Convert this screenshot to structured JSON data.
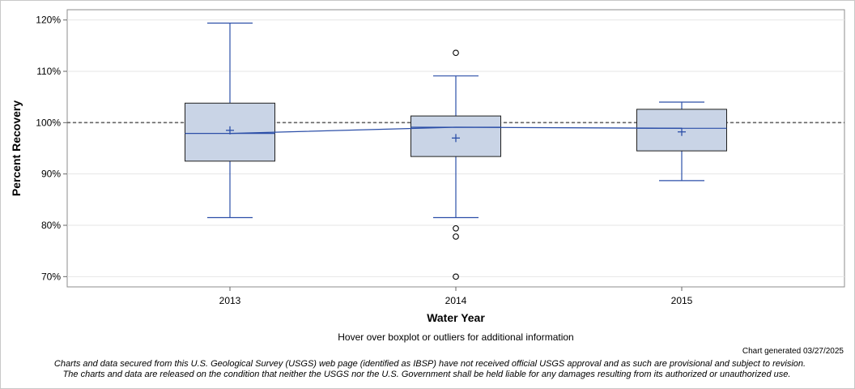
{
  "chart_data": {
    "type": "box",
    "xlabel": "Water Year",
    "ylabel": "Percent Recovery",
    "ylim": [
      68,
      122
    ],
    "yticks": [
      70,
      80,
      90,
      100,
      110,
      120
    ],
    "ytick_labels": [
      "70%",
      "80%",
      "90%",
      "100%",
      "110%",
      "120%"
    ],
    "reference_line": 100,
    "categories": [
      "2013",
      "2014",
      "2015"
    ],
    "boxes": [
      {
        "category": "2013",
        "whisker_low": 81.5,
        "q1": 92.5,
        "median": 97.9,
        "q3": 103.8,
        "whisker_high": 119.4,
        "mean": 98.5,
        "outliers": []
      },
      {
        "category": "2014",
        "whisker_low": 81.5,
        "q1": 93.4,
        "median": 99.1,
        "q3": 101.3,
        "whisker_high": 109.1,
        "mean": 97.0,
        "outliers": [
          113.6,
          79.4,
          77.8,
          70.0
        ]
      },
      {
        "category": "2015",
        "whisker_low": 88.7,
        "q1": 94.5,
        "median": 98.9,
        "q3": 102.6,
        "whisker_high": 104.0,
        "mean": 98.2,
        "outliers": []
      }
    ],
    "median_line": [
      97.9,
      99.1,
      98.9
    ],
    "grid": true,
    "colors": {
      "box_fill": "#c9d4e6",
      "box_edge": "#1f1f1f",
      "whisker": "#2c4fa8",
      "median_line": "#2c4fa8",
      "reference": "#666666",
      "grid": "#e6e6e6"
    }
  },
  "footer": {
    "hover_note": "Hover over boxplot or outliers for additional information",
    "generated": "Chart generated 03/27/2025",
    "disclaimer_1": "Charts and data secured from this U.S. Geological Survey (USGS) web page (identified as IBSP) have not received official USGS approval and as such are provisional and subject to revision.",
    "disclaimer_2": "The charts and data are released on the condition that neither the USGS nor the U.S. Government shall be held liable for any damages resulting from its authorized or unauthorized use."
  }
}
